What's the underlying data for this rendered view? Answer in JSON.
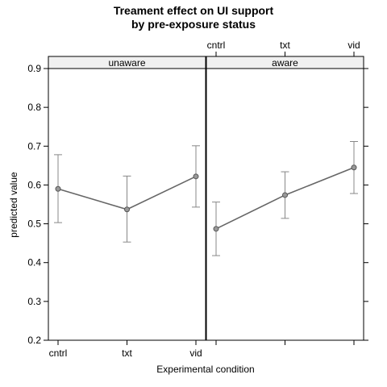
{
  "chart_data": {
    "type": "line",
    "title": [
      "Treament effect on UI support",
      "by pre-exposure status"
    ],
    "xlabel": "Experimental condition",
    "ylabel": "predicted value",
    "categories": [
      "cntrl",
      "txt",
      "vid"
    ],
    "ylim": [
      0.2,
      0.9
    ],
    "yticks": [
      0.2,
      0.3,
      0.4,
      0.5,
      0.6,
      0.7,
      0.8,
      0.9
    ],
    "yticklabels": [
      "0.2",
      "0.3",
      "0.4",
      "0.5",
      "0.6",
      "0.7",
      "0.8",
      "0.9"
    ],
    "grid": false,
    "line_color": "#666666",
    "strip_color": "#f0f0f0",
    "panels": [
      {
        "strip": "unaware",
        "values": [
          0.59,
          0.537,
          0.622
        ],
        "lower": [
          0.503,
          0.453,
          0.543
        ],
        "upper": [
          0.678,
          0.623,
          0.701
        ]
      },
      {
        "strip": "aware",
        "values": [
          0.487,
          0.574,
          0.645
        ],
        "lower": [
          0.418,
          0.514,
          0.578
        ],
        "upper": [
          0.556,
          0.634,
          0.712
        ]
      }
    ]
  }
}
